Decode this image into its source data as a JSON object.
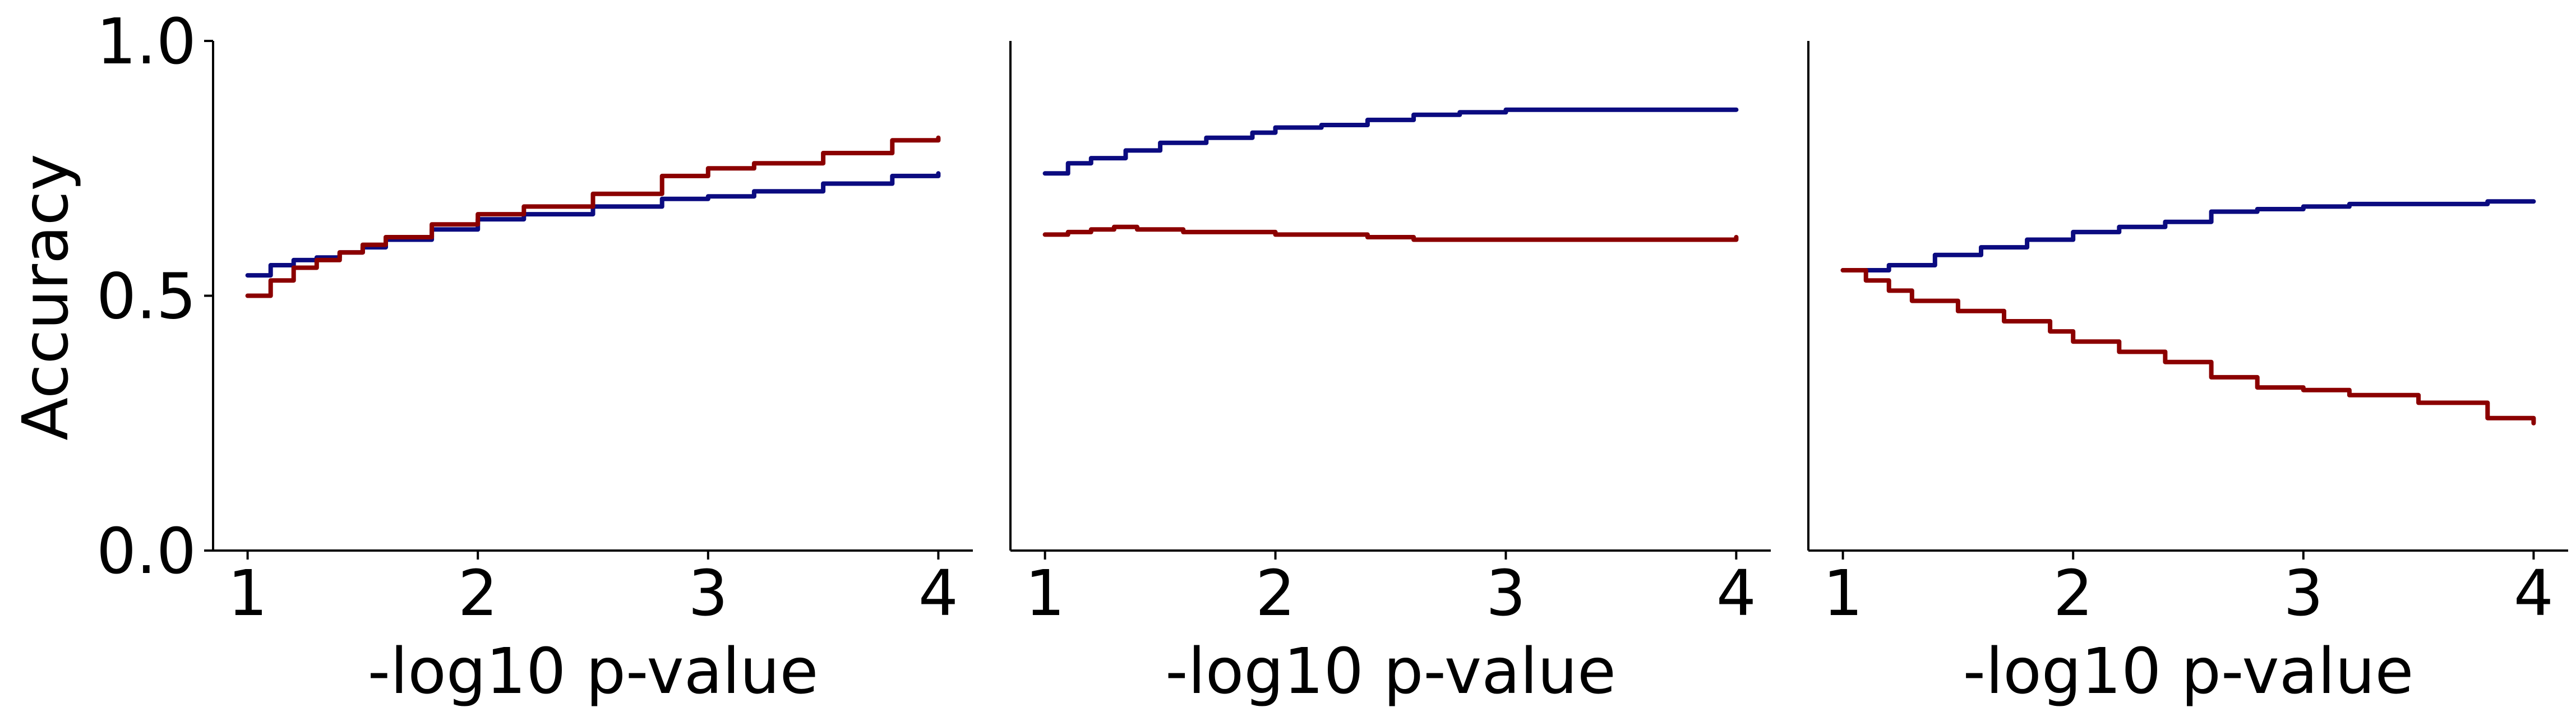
{
  "figure": {
    "ylabel": "Accuracy"
  },
  "colors": {
    "blue": "#0b0b80",
    "red": "#8b0000"
  },
  "chart_data": [
    {
      "type": "line",
      "xlabel": "-log10 p-value",
      "ylabel": "Accuracy",
      "xlim": [
        0.85,
        4.15
      ],
      "ylim": [
        0.0,
        1.0
      ],
      "xticks": [
        1,
        2,
        3,
        4
      ],
      "yticks": [
        0.0,
        0.5,
        1.0
      ],
      "xtick_labels": [
        "1",
        "2",
        "3",
        "4"
      ],
      "ytick_labels": [
        "0.0",
        "0.5",
        "1.0"
      ],
      "grid": false,
      "series": [
        {
          "color": "#0b0b80",
          "x": [
            1.0,
            1.1,
            1.2,
            1.3,
            1.4,
            1.5,
            1.6,
            1.8,
            2.0,
            2.2,
            2.5,
            2.8,
            3.0,
            3.2,
            3.5,
            3.8,
            4.0
          ],
          "y": [
            0.54,
            0.56,
            0.57,
            0.575,
            0.585,
            0.595,
            0.61,
            0.63,
            0.65,
            0.66,
            0.675,
            0.69,
            0.695,
            0.705,
            0.72,
            0.735,
            0.74
          ]
        },
        {
          "color": "#8b0000",
          "x": [
            1.0,
            1.1,
            1.2,
            1.3,
            1.4,
            1.5,
            1.6,
            1.8,
            2.0,
            2.2,
            2.5,
            2.8,
            3.0,
            3.2,
            3.5,
            3.8,
            4.0
          ],
          "y": [
            0.5,
            0.53,
            0.555,
            0.57,
            0.585,
            0.6,
            0.615,
            0.64,
            0.66,
            0.675,
            0.7,
            0.735,
            0.75,
            0.76,
            0.78,
            0.805,
            0.81
          ]
        }
      ]
    },
    {
      "type": "line",
      "xlabel": "-log10 p-value",
      "ylabel": "",
      "xlim": [
        0.85,
        4.15
      ],
      "ylim": [
        0.0,
        1.0
      ],
      "xticks": [
        1,
        2,
        3,
        4
      ],
      "xtick_labels": [
        "1",
        "2",
        "3",
        "4"
      ],
      "grid": false,
      "series": [
        {
          "color": "#0b0b80",
          "x": [
            1.0,
            1.1,
            1.2,
            1.35,
            1.5,
            1.7,
            1.9,
            2.0,
            2.2,
            2.4,
            2.6,
            2.8,
            3.0,
            3.3,
            3.6,
            4.0
          ],
          "y": [
            0.74,
            0.76,
            0.77,
            0.785,
            0.8,
            0.81,
            0.82,
            0.83,
            0.835,
            0.845,
            0.855,
            0.86,
            0.865,
            0.865,
            0.865,
            0.865
          ]
        },
        {
          "color": "#8b0000",
          "x": [
            1.0,
            1.1,
            1.2,
            1.3,
            1.4,
            1.6,
            1.8,
            2.0,
            2.2,
            2.4,
            2.6,
            2.8,
            3.0,
            3.3,
            3.6,
            4.0
          ],
          "y": [
            0.62,
            0.625,
            0.63,
            0.635,
            0.63,
            0.625,
            0.625,
            0.62,
            0.62,
            0.615,
            0.61,
            0.61,
            0.61,
            0.61,
            0.61,
            0.615
          ]
        }
      ]
    },
    {
      "type": "line",
      "xlabel": "-log10 p-value",
      "ylabel": "",
      "xlim": [
        0.85,
        4.15
      ],
      "ylim": [
        0.0,
        1.0
      ],
      "xticks": [
        1,
        2,
        3,
        4
      ],
      "xtick_labels": [
        "1",
        "2",
        "3",
        "4"
      ],
      "grid": false,
      "series": [
        {
          "color": "#0b0b80",
          "x": [
            1.0,
            1.2,
            1.4,
            1.6,
            1.8,
            2.0,
            2.2,
            2.4,
            2.6,
            2.8,
            3.0,
            3.2,
            3.4,
            3.6,
            3.8,
            4.0
          ],
          "y": [
            0.55,
            0.56,
            0.58,
            0.595,
            0.61,
            0.625,
            0.635,
            0.645,
            0.665,
            0.67,
            0.675,
            0.68,
            0.68,
            0.68,
            0.685,
            0.685
          ]
        },
        {
          "color": "#8b0000",
          "x": [
            1.0,
            1.1,
            1.2,
            1.3,
            1.5,
            1.7,
            1.9,
            2.0,
            2.2,
            2.4,
            2.6,
            2.8,
            3.0,
            3.2,
            3.5,
            3.8,
            4.0
          ],
          "y": [
            0.55,
            0.53,
            0.51,
            0.49,
            0.47,
            0.45,
            0.43,
            0.41,
            0.39,
            0.37,
            0.34,
            0.32,
            0.315,
            0.305,
            0.29,
            0.26,
            0.25
          ]
        }
      ]
    }
  ]
}
